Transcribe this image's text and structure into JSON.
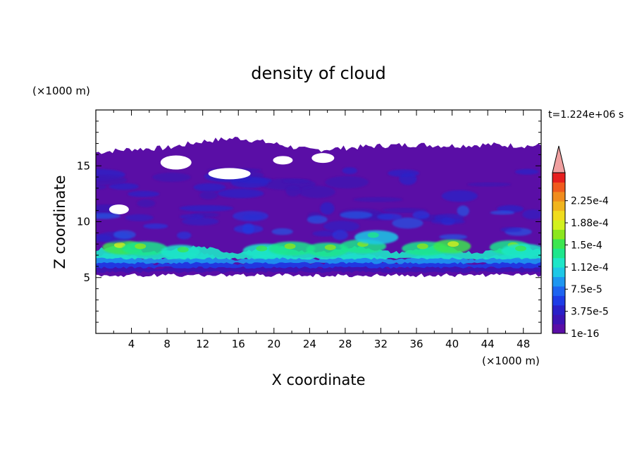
{
  "chart_data": {
    "type": "heatmap",
    "title": "density of cloud",
    "xlabel": "X coordinate",
    "ylabel": "Z coordinate",
    "x_unit": "(×1000 m)",
    "y_unit": "(×1000 m)",
    "time_label": "t=1.224e+06 s",
    "xlim": [
      0,
      50
    ],
    "ylim": [
      0,
      20
    ],
    "x_ticks": [
      4,
      8,
      12,
      16,
      20,
      24,
      28,
      32,
      36,
      40,
      44,
      48
    ],
    "y_ticks": [
      5,
      10,
      15
    ],
    "colorbar": {
      "labels": [
        "1e-16",
        "3.75e-5",
        "7.5e-5",
        "1.12e-4",
        "1.5e-4",
        "1.88e-4",
        "2.25e-4"
      ],
      "colors": [
        "#5a0ea6",
        "#3c14b4",
        "#2a20c8",
        "#1e3ce6",
        "#1e64f0",
        "#1e96f0",
        "#1ec8e6",
        "#1ee6c8",
        "#1ee68c",
        "#3ce650",
        "#8ce61e",
        "#d2f01e",
        "#f0dc1e",
        "#f0b41e",
        "#f08c1e",
        "#f05a1e",
        "#e61e1e"
      ],
      "extend_color": "#f0a0a0"
    },
    "layers": [
      {
        "level": "upper cloud top",
        "z_top_km": [
          16.2,
          16.5,
          16.6,
          17.2,
          17.5,
          17.0,
          16.4,
          16.6,
          16.8,
          16.9,
          16.8,
          16.9,
          16.8,
          16.8
        ]
      },
      {
        "level": "cloud base",
        "z_bottom_km": 5.2
      },
      {
        "level": "dense layer",
        "z_range_km": [
          5.5,
          8.5
        ],
        "peak_color_index": 10
      }
    ],
    "x_samples": [
      0,
      4,
      8,
      12,
      16,
      20,
      24,
      28,
      32,
      36,
      40,
      44,
      48,
      50
    ]
  }
}
